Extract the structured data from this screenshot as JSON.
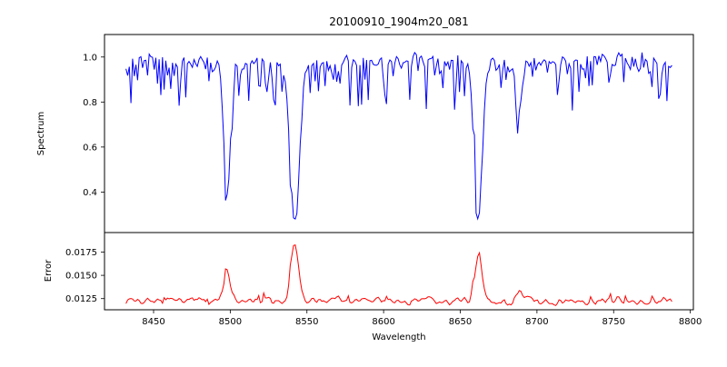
{
  "chart_data": {
    "type": "line",
    "title": "20100910_1904m20_081",
    "xlabel": "Wavelength",
    "x_range": [
      8432,
      8788
    ],
    "xlim": [
      8418,
      8802
    ],
    "x_ticks": [
      8450,
      8500,
      8550,
      8600,
      8650,
      8700,
      8750,
      8800
    ],
    "n_points": 330,
    "seed": 20100910,
    "panels": [
      {
        "ylabel": "Spectrum",
        "color": "#0000ff",
        "ylim": [
          0.22,
          1.1
        ],
        "y_ticks": [
          0.4,
          0.6,
          0.8,
          1.0
        ],
        "y_tick_labels": [
          "0.4",
          "0.6",
          "0.8",
          "1.0"
        ],
        "continuum": 0.985,
        "noise_amp": 0.09,
        "dip_amp": 0.22,
        "absorption_lines": [
          {
            "center": 8498,
            "depth": 0.57,
            "width": 2.2
          },
          {
            "center": 8542,
            "depth": 0.7,
            "width": 3.0
          },
          {
            "center": 8662,
            "depth": 0.65,
            "width": 2.4
          },
          {
            "center": 8688,
            "depth": 0.27,
            "width": 1.8
          }
        ]
      },
      {
        "ylabel": "Error",
        "color": "#ff0000",
        "ylim": [
          0.0113,
          0.0196
        ],
        "y_ticks": [
          0.0125,
          0.015,
          0.0175
        ],
        "y_tick_labels": [
          "0.0125",
          "0.0150",
          "0.0175"
        ],
        "baseline": 0.01225,
        "noise_amp": 0.0012,
        "peaks": [
          {
            "center": 8498,
            "height": 0.0032,
            "width": 2.2
          },
          {
            "center": 8542,
            "height": 0.0063,
            "width": 2.6
          },
          {
            "center": 8662,
            "height": 0.0052,
            "width": 2.3
          },
          {
            "center": 8688,
            "height": 0.0011,
            "width": 1.8
          }
        ]
      }
    ]
  }
}
